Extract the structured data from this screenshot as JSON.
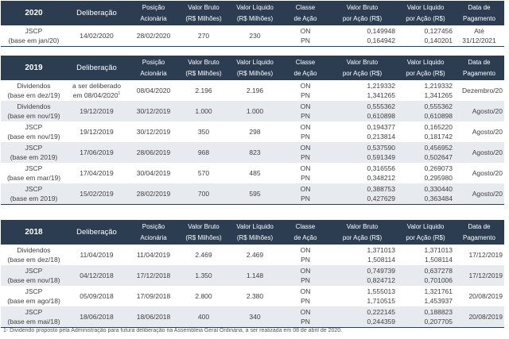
{
  "headers": {
    "deliberacao": "Deliberação",
    "posicao_1": "Posição",
    "posicao_2": "Acionária",
    "bruto_1": "Valor Bruto",
    "bruto_2": "(R$ Milhões)",
    "liquido_1": "Valor Líquido",
    "liquido_2": "(R$ Milhões)",
    "classe_1": "Classe",
    "classe_2": "de Ação",
    "bruto_acao_1": "Valor Bruto",
    "bruto_acao_2": "por Ação (R$)",
    "liquido_acao_1": "Valor Líquido",
    "liquido_acao_2": "por Ação (R$)",
    "pagamento_1": "Data de",
    "pagamento_2": "Pagamento"
  },
  "tables": [
    {
      "year": "2020",
      "rows": [
        {
          "tipo": "JSCP",
          "base": "(base em jan/20)",
          "deliberacao": "14/02/2020",
          "deliberacao_sup": "",
          "posicao": "28/02/2020",
          "bruto": "270",
          "liquido": "230",
          "classes": [
            "ON",
            "PN"
          ],
          "bruto_acao": [
            "0,149948",
            "0,164942"
          ],
          "liquido_acao": [
            "0,127456",
            "0,140201"
          ],
          "pagamento": [
            "Até",
            "31/12/2021"
          ]
        }
      ]
    },
    {
      "year": "2019",
      "rows": [
        {
          "tipo": "Dividendos",
          "base": "(base em dez/19)",
          "deliberacao": "a ser deliberado em 08/04/2020",
          "deliberacao_sup": "1",
          "posicao": "08/04/2020",
          "bruto": "2.196",
          "liquido": "2.196",
          "classes": [
            "ON",
            "PN"
          ],
          "bruto_acao": [
            "1,219332",
            "1,341265"
          ],
          "liquido_acao": [
            "1,219332",
            "1,341265"
          ],
          "pagamento": [
            "Dezembro/20"
          ]
        },
        {
          "tipo": "Dividendos",
          "base": "(base em nov/19)",
          "deliberacao": "19/12/2019",
          "deliberacao_sup": "",
          "posicao": "30/12/2019",
          "bruto": "1.000",
          "liquido": "1.000",
          "classes": [
            "ON",
            "PN"
          ],
          "bruto_acao": [
            "0,555362",
            "0,610898"
          ],
          "liquido_acao": [
            "0,555362",
            "0,610898"
          ],
          "pagamento": [
            "Agosto/20"
          ]
        },
        {
          "tipo": "JSCP",
          "base": "(base em nov/19)",
          "deliberacao": "19/12/2019",
          "deliberacao_sup": "",
          "posicao": "30/12/2019",
          "bruto": "350",
          "liquido": "298",
          "classes": [
            "ON",
            "PN"
          ],
          "bruto_acao": [
            "0,194377",
            "0,213814"
          ],
          "liquido_acao": [
            "0,165220",
            "0,181742"
          ],
          "pagamento": [
            "Agosto/20"
          ]
        },
        {
          "tipo": "JSCP",
          "base": "(base em 2019)",
          "deliberacao": "17/06/2019",
          "deliberacao_sup": "",
          "posicao": "28/06/2019",
          "bruto": "968",
          "liquido": "823",
          "classes": [
            "ON",
            "PN"
          ],
          "bruto_acao": [
            "0,537590",
            "0,591349"
          ],
          "liquido_acao": [
            "0,456952",
            "0,502647"
          ],
          "pagamento": [
            "Agosto/20"
          ]
        },
        {
          "tipo": "JSCP",
          "base": "(base em mar/19)",
          "deliberacao": "17/04/2019",
          "deliberacao_sup": "",
          "posicao": "30/04/2019",
          "bruto": "570",
          "liquido": "485",
          "classes": [
            "ON",
            "PN"
          ],
          "bruto_acao": [
            "0,316556",
            "0,348212"
          ],
          "liquido_acao": [
            "0,269073",
            "0,295980"
          ],
          "pagamento": [
            "Agosto/20"
          ]
        },
        {
          "tipo": "JSCP",
          "base": "(base em 2019)",
          "deliberacao": "15/02/2019",
          "deliberacao_sup": "",
          "posicao": "28/02/2019",
          "bruto": "700",
          "liquido": "595",
          "classes": [
            "ON",
            "PN"
          ],
          "bruto_acao": [
            "0,388753",
            "0,427629"
          ],
          "liquido_acao": [
            "0,330440",
            "0,363484"
          ],
          "pagamento": [
            "Agosto/20"
          ]
        }
      ]
    },
    {
      "year": "2018",
      "rows": [
        {
          "tipo": "Dividendos",
          "base": "(base em dez/18)",
          "deliberacao": "11/04/2019",
          "deliberacao_sup": "",
          "posicao": "11/04/2019",
          "bruto": "2.469",
          "liquido": "2.469",
          "classes": [
            "ON",
            "PN"
          ],
          "bruto_acao": [
            "1,371013",
            "1,508114"
          ],
          "liquido_acao": [
            "1,371013",
            "1,508114"
          ],
          "pagamento": [
            "17/12/2019"
          ]
        },
        {
          "tipo": "JSCP",
          "base": "(base em nov/18)",
          "deliberacao": "04/12/2018",
          "deliberacao_sup": "",
          "posicao": "17/12/2018",
          "bruto": "1.350",
          "liquido": "1.148",
          "classes": [
            "ON",
            "PN"
          ],
          "bruto_acao": [
            "0,749739",
            "0,824712"
          ],
          "liquido_acao": [
            "0,637278",
            "0,701006"
          ],
          "pagamento": [
            "17/12/2019"
          ]
        },
        {
          "tipo": "JSCP",
          "base": "(base em ago/18)",
          "deliberacao": "05/09/2018",
          "deliberacao_sup": "",
          "posicao": "17/09/2018",
          "bruto": "2.800",
          "liquido": "2.380",
          "classes": [
            "ON",
            "PN"
          ],
          "bruto_acao": [
            "1,555013",
            "1,710515"
          ],
          "liquido_acao": [
            "1,321761",
            "1,453937"
          ],
          "pagamento": [
            "20/08/2019"
          ]
        },
        {
          "tipo": "JSCP",
          "base": "(base em mai/18)",
          "deliberacao": "18/06/2018",
          "deliberacao_sup": "",
          "posicao": "18/06/2018",
          "bruto": "400",
          "liquido": "340",
          "classes": [
            "ON",
            "PN"
          ],
          "bruto_acao": [
            "0,222145",
            "0,244359"
          ],
          "liquido_acao": [
            "0,188823",
            "0,207705"
          ],
          "pagamento": [
            "20/08/2019"
          ]
        }
      ]
    }
  ],
  "footnote": "1- Dividendo proposto pela Administração para futura deliberação na Assembleia Geral Ordinária, a ser realizada em 08 de abril de 2020."
}
